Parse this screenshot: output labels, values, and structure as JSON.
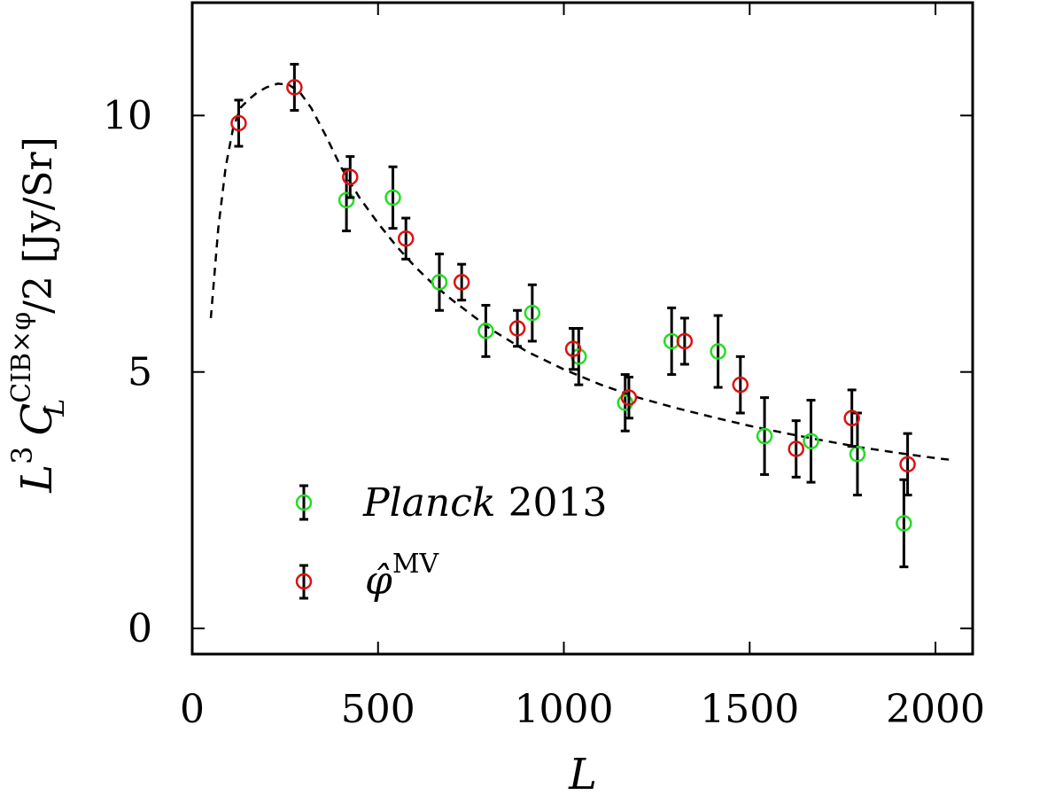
{
  "chart_data": {
    "type": "scatter",
    "title": "",
    "xlabel": "L",
    "ylabel": {
      "prefix": "L",
      "power": "3",
      "symbol": "C",
      "subscript": "L",
      "superscript": "CIB×φ",
      "suffix": "/2 [Jy/Sr]"
    },
    "xlim": [
      0,
      2100
    ],
    "ylim": [
      -0.5,
      12.2
    ],
    "x_ticks": [
      0,
      500,
      1000,
      1500,
      2000
    ],
    "x_tick_labels": [
      "0",
      "500",
      "1000",
      "1500",
      "2000"
    ],
    "y_ticks": [
      0,
      5,
      10
    ],
    "y_tick_labels": [
      "0",
      "5",
      "10"
    ],
    "grid": false,
    "legend_position": "bottom-left",
    "series": [
      {
        "name": "Planck 2013",
        "name_italic": "Planck",
        "name_rest": "2013",
        "color": "#22dd22",
        "marker": "open-circle",
        "points": [
          {
            "x": 415,
            "y": 8.35,
            "err": 0.6
          },
          {
            "x": 540,
            "y": 8.4,
            "err": 0.6
          },
          {
            "x": 665,
            "y": 6.75,
            "err": 0.55
          },
          {
            "x": 790,
            "y": 5.8,
            "err": 0.5
          },
          {
            "x": 915,
            "y": 6.15,
            "err": 0.55
          },
          {
            "x": 1040,
            "y": 5.3,
            "err": 0.55
          },
          {
            "x": 1165,
            "y": 4.4,
            "err": 0.55
          },
          {
            "x": 1290,
            "y": 5.6,
            "err": 0.65
          },
          {
            "x": 1415,
            "y": 5.4,
            "err": 0.7
          },
          {
            "x": 1540,
            "y": 3.75,
            "err": 0.75
          },
          {
            "x": 1665,
            "y": 3.65,
            "err": 0.8
          },
          {
            "x": 1790,
            "y": 3.4,
            "err": 0.8
          },
          {
            "x": 1915,
            "y": 2.05,
            "err": 0.85
          }
        ]
      },
      {
        "name": "φ̂^MV",
        "name_symbol": "φ̂",
        "name_superscript": "MV",
        "color": "#dd1111",
        "marker": "open-circle",
        "points": [
          {
            "x": 125,
            "y": 9.85,
            "err": 0.45
          },
          {
            "x": 275,
            "y": 10.55,
            "err": 0.45
          },
          {
            "x": 425,
            "y": 8.8,
            "err": 0.4
          },
          {
            "x": 575,
            "y": 7.6,
            "err": 0.4
          },
          {
            "x": 725,
            "y": 6.75,
            "err": 0.35
          },
          {
            "x": 875,
            "y": 5.85,
            "err": 0.35
          },
          {
            "x": 1025,
            "y": 5.45,
            "err": 0.4
          },
          {
            "x": 1175,
            "y": 4.5,
            "err": 0.4
          },
          {
            "x": 1325,
            "y": 5.6,
            "err": 0.45
          },
          {
            "x": 1475,
            "y": 4.75,
            "err": 0.55
          },
          {
            "x": 1625,
            "y": 3.5,
            "err": 0.55
          },
          {
            "x": 1775,
            "y": 4.1,
            "err": 0.55
          },
          {
            "x": 1925,
            "y": 3.2,
            "err": 0.6
          }
        ]
      }
    ],
    "model_curve": {
      "name": "model",
      "style": "dashed",
      "color": "#000000",
      "x": [
        50,
        70,
        90,
        110,
        130,
        150,
        175,
        200,
        230,
        260,
        290,
        320,
        360,
        400,
        450,
        500,
        550,
        600,
        650,
        700,
        800,
        900,
        1000,
        1100,
        1200,
        1300,
        1400,
        1500,
        1600,
        1700,
        1800,
        1900,
        2000,
        2050
      ],
      "y": [
        6.05,
        7.8,
        9.0,
        9.75,
        10.15,
        10.3,
        10.45,
        10.55,
        10.62,
        10.6,
        10.45,
        10.15,
        9.6,
        9.0,
        8.4,
        7.9,
        7.45,
        7.05,
        6.7,
        6.4,
        5.85,
        5.4,
        5.05,
        4.75,
        4.5,
        4.3,
        4.12,
        3.95,
        3.8,
        3.66,
        3.53,
        3.42,
        3.32,
        3.28
      ]
    }
  }
}
